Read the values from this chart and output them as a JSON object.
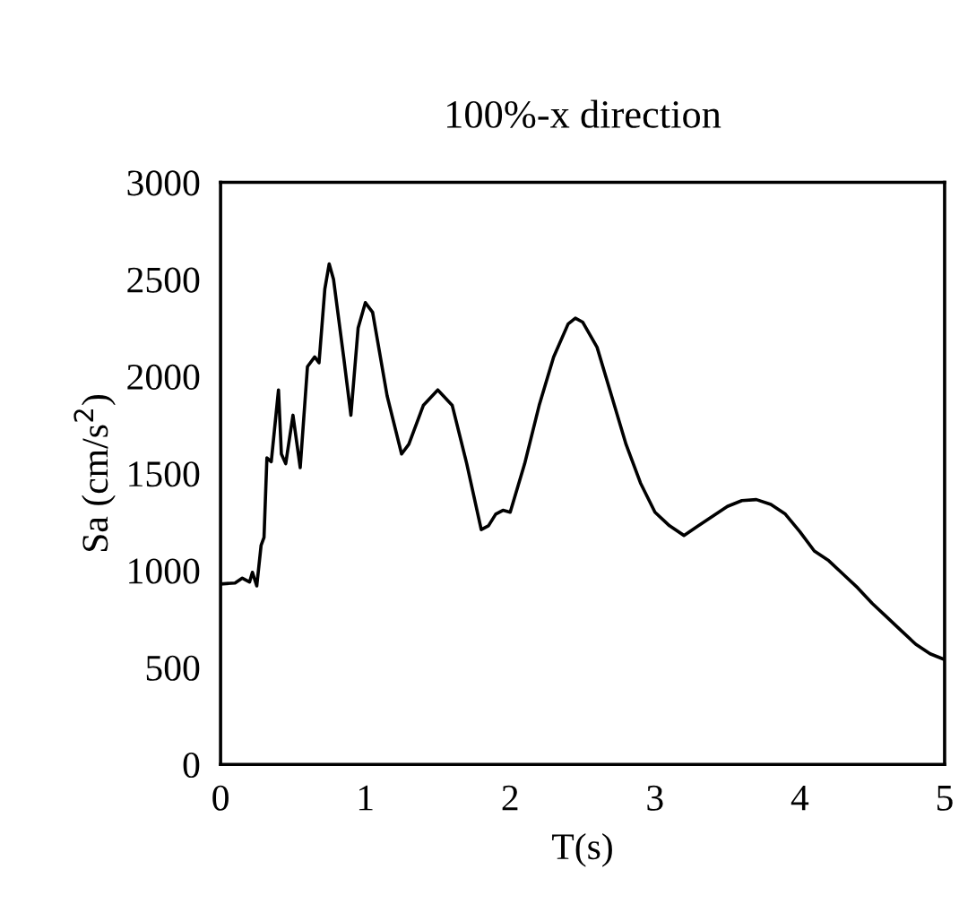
{
  "chart_data": {
    "type": "line",
    "title": "100%-x direction",
    "xlabel": "T(s)",
    "ylabel": "Sa (cm/s$^{2}$)",
    "xlim": [
      0,
      5
    ],
    "xticks": [
      0,
      1,
      2,
      3,
      4,
      5
    ],
    "ylim": [
      0,
      3000
    ],
    "yticks": [
      0,
      500,
      1000,
      1500,
      2000,
      2500,
      3000
    ],
    "grid": false,
    "legend": false,
    "marker": "none",
    "line_style": "solid",
    "series": [
      {
        "color": "#000000",
        "x": [
          0,
          0.1,
          0.15,
          0.2,
          0.22,
          0.25,
          0.28,
          0.3,
          0.32,
          0.35,
          0.4,
          0.42,
          0.45,
          0.5,
          0.55,
          0.6,
          0.65,
          0.68,
          0.72,
          0.75,
          0.78,
          0.85,
          0.9,
          0.95,
          1.0,
          1.05,
          1.15,
          1.25,
          1.3,
          1.4,
          1.5,
          1.6,
          1.7,
          1.8,
          1.85,
          1.9,
          1.95,
          2.0,
          2.1,
          2.2,
          2.3,
          2.4,
          2.45,
          2.5,
          2.6,
          2.7,
          2.8,
          2.9,
          3.0,
          3.1,
          3.2,
          3.3,
          3.4,
          3.5,
          3.6,
          3.7,
          3.8,
          3.9,
          4.0,
          4.1,
          4.2,
          4.3,
          4.4,
          4.5,
          4.6,
          4.7,
          4.8,
          4.9,
          5.0
        ],
        "values": [
          930,
          935,
          960,
          940,
          990,
          920,
          1130,
          1170,
          1580,
          1560,
          1930,
          1600,
          1550,
          1800,
          1530,
          2050,
          2100,
          2070,
          2450,
          2580,
          2500,
          2100,
          1800,
          2250,
          2380,
          2330,
          1900,
          1600,
          1650,
          1850,
          1930,
          1850,
          1550,
          1210,
          1230,
          1290,
          1310,
          1300,
          1550,
          1850,
          2100,
          2270,
          2300,
          2280,
          2150,
          1900,
          1650,
          1450,
          1300,
          1230,
          1180,
          1230,
          1280,
          1330,
          1360,
          1365,
          1340,
          1290,
          1200,
          1100,
          1050,
          980,
          910,
          830,
          760,
          690,
          620,
          570,
          540
        ]
      }
    ]
  }
}
